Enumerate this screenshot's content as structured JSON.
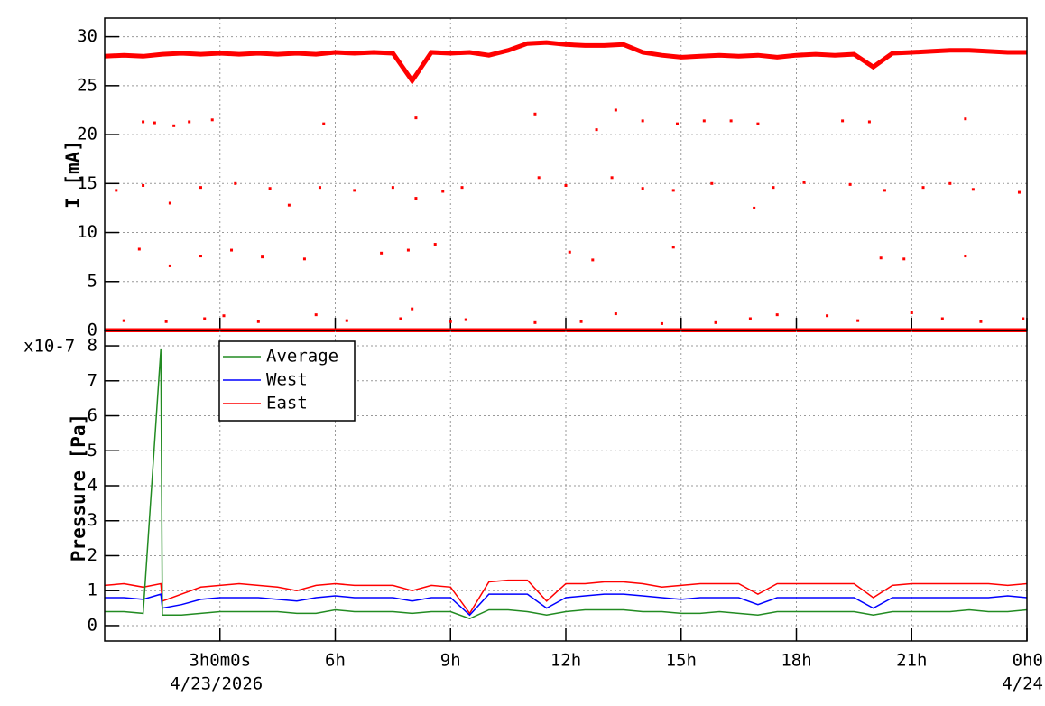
{
  "chart_data": [
    {
      "type": "scatter",
      "ylabel": "I [mA]",
      "color": "#ff0000",
      "grid": true,
      "xlim": [
        0,
        24
      ],
      "xticks": [
        3,
        6,
        9,
        12,
        15,
        18,
        21,
        24
      ],
      "ylim": [
        0,
        31.9
      ],
      "yticks": [
        0,
        5,
        10,
        15,
        20,
        25,
        30
      ],
      "series": [
        {
          "style": "line",
          "color": "#ff0000",
          "x": [
            0,
            0.5,
            1,
            1.5,
            2,
            2.5,
            3,
            3.5,
            4,
            4.5,
            5,
            5.5,
            6,
            6.5,
            7,
            7.5,
            8,
            8.5,
            9,
            9.5,
            10,
            10.5,
            11,
            11.5,
            12,
            12.5,
            13,
            13.5,
            14,
            14.5,
            15,
            15.5,
            16,
            16.5,
            17,
            17.5,
            18,
            18.5,
            19,
            19.5,
            20,
            20.5,
            21,
            21.5,
            22,
            22.5,
            23,
            23.5,
            24
          ],
          "values": [
            28.0,
            28.1,
            28.0,
            28.2,
            28.3,
            28.2,
            28.3,
            28.2,
            28.3,
            28.2,
            28.3,
            28.2,
            28.4,
            28.3,
            28.4,
            28.3,
            25.5,
            28.4,
            28.3,
            28.4,
            28.1,
            28.6,
            29.3,
            29.4,
            29.2,
            29.1,
            29.1,
            29.2,
            28.4,
            28.1,
            27.9,
            28.0,
            28.1,
            28.0,
            28.1,
            27.9,
            28.1,
            28.2,
            28.1,
            28.2,
            26.9,
            28.3,
            28.4,
            28.5,
            28.6,
            28.6,
            28.5,
            28.4,
            28.4
          ]
        },
        {
          "style": "line",
          "color": "#ff0000",
          "x": [
            0,
            24
          ],
          "values": [
            0,
            0
          ]
        },
        {
          "style": "marker",
          "color": "#ff0000",
          "x": [
            1.0,
            1.3,
            1.8,
            2.2,
            2.8,
            5.7,
            8.1,
            11.2,
            12.8,
            13.3,
            14.0,
            14.9,
            15.6,
            16.3,
            17.0,
            19.2,
            19.9,
            22.4,
            0.3,
            1.0,
            1.7,
            2.5,
            3.4,
            4.3,
            4.8,
            5.6,
            6.5,
            7.5,
            8.1,
            8.8,
            9.3,
            11.3,
            12.0,
            13.2,
            14.0,
            14.8,
            15.8,
            16.9,
            17.4,
            18.2,
            19.4,
            20.3,
            21.3,
            22.0,
            22.6,
            23.8,
            0.9,
            1.7,
            2.5,
            3.3,
            4.1,
            5.2,
            7.2,
            7.9,
            8.6,
            12.1,
            12.7,
            14.8,
            20.2,
            20.8,
            22.4,
            0.5,
            1.6,
            2.6,
            3.1,
            4.0,
            5.5,
            6.3,
            7.7,
            8.0,
            9.0,
            9.4,
            11.2,
            12.4,
            13.3,
            14.5,
            15.9,
            16.8,
            17.5,
            18.8,
            19.6,
            21.0,
            21.8,
            22.8,
            23.9
          ],
          "values": [
            21.3,
            21.2,
            20.9,
            21.3,
            21.5,
            21.1,
            21.7,
            22.1,
            20.5,
            22.5,
            21.4,
            21.1,
            21.4,
            21.4,
            21.1,
            21.4,
            21.3,
            21.6,
            14.3,
            14.8,
            13.0,
            14.6,
            15.0,
            14.5,
            12.8,
            14.6,
            14.3,
            14.6,
            13.5,
            14.2,
            14.6,
            15.6,
            14.8,
            15.6,
            14.5,
            14.3,
            15.0,
            12.5,
            14.6,
            15.1,
            14.9,
            14.3,
            14.6,
            15.0,
            14.4,
            14.1,
            8.3,
            6.6,
            7.6,
            8.2,
            7.5,
            7.3,
            7.9,
            8.2,
            8.8,
            8.0,
            7.2,
            8.5,
            7.4,
            7.3,
            7.6,
            1.0,
            0.9,
            1.2,
            1.5,
            0.9,
            1.6,
            1.0,
            1.2,
            2.2,
            0.9,
            1.1,
            0.8,
            0.9,
            1.7,
            0.7,
            0.8,
            1.2,
            1.6,
            1.5,
            1.0,
            1.8,
            1.2,
            0.9,
            1.2
          ]
        }
      ]
    },
    {
      "type": "line",
      "ylabel": "Pressure [Pa]",
      "y_multiplier": "x10-7",
      "grid": true,
      "legend": "top-left",
      "xlim": [
        0,
        24
      ],
      "xticks": [
        {
          "value": 3,
          "label": "3h0m0s"
        },
        {
          "value": 6,
          "label": "6h"
        },
        {
          "value": 9,
          "label": "9h"
        },
        {
          "value": 12,
          "label": "12h"
        },
        {
          "value": 15,
          "label": "15h"
        },
        {
          "value": 18,
          "label": "18h"
        },
        {
          "value": 21,
          "label": "21h"
        },
        {
          "value": 24,
          "label": "0h0"
        }
      ],
      "xtick_dates": [
        {
          "value": 3,
          "label": "4/23/2026"
        },
        {
          "value": 24,
          "label": "4/24"
        }
      ],
      "ylim": [
        -0.44,
        8.44
      ],
      "yticks": [
        0,
        1,
        2,
        3,
        4,
        5,
        6,
        7,
        8
      ],
      "x": [
        0,
        0.5,
        1,
        1.46,
        1.5,
        2,
        2.5,
        3,
        3.5,
        4,
        4.5,
        5,
        5.5,
        6,
        6.5,
        7,
        7.5,
        8,
        8.5,
        9,
        9.5,
        10,
        10.5,
        11,
        11.5,
        12,
        12.5,
        13,
        13.5,
        14,
        14.5,
        15,
        15.5,
        16,
        16.5,
        17,
        17.5,
        18,
        18.5,
        19,
        19.5,
        20,
        20.5,
        21,
        21.5,
        22,
        22.5,
        23,
        23.5,
        24
      ],
      "series": [
        {
          "name": "Average",
          "color": "#228b22",
          "values": [
            0.4,
            0.4,
            0.35,
            7.9,
            0.3,
            0.3,
            0.35,
            0.4,
            0.4,
            0.4,
            0.4,
            0.35,
            0.35,
            0.45,
            0.4,
            0.4,
            0.4,
            0.35,
            0.4,
            0.4,
            0.2,
            0.45,
            0.45,
            0.4,
            0.3,
            0.4,
            0.45,
            0.45,
            0.45,
            0.4,
            0.4,
            0.35,
            0.35,
            0.4,
            0.35,
            0.3,
            0.4,
            0.4,
            0.4,
            0.4,
            0.4,
            0.3,
            0.4,
            0.4,
            0.4,
            0.4,
            0.45,
            0.4,
            0.4,
            0.45
          ]
        },
        {
          "name": "West",
          "color": "#0000ff",
          "values": [
            0.8,
            0.8,
            0.75,
            0.9,
            0.5,
            0.6,
            0.75,
            0.8,
            0.8,
            0.8,
            0.75,
            0.7,
            0.8,
            0.85,
            0.8,
            0.8,
            0.8,
            0.7,
            0.8,
            0.8,
            0.3,
            0.9,
            0.9,
            0.9,
            0.5,
            0.8,
            0.85,
            0.9,
            0.9,
            0.85,
            0.8,
            0.75,
            0.8,
            0.8,
            0.8,
            0.6,
            0.8,
            0.8,
            0.8,
            0.8,
            0.8,
            0.5,
            0.8,
            0.8,
            0.8,
            0.8,
            0.8,
            0.8,
            0.85,
            0.8
          ]
        },
        {
          "name": "East",
          "color": "#ff0000",
          "values": [
            1.15,
            1.2,
            1.1,
            1.2,
            0.7,
            0.9,
            1.1,
            1.15,
            1.2,
            1.15,
            1.1,
            1.0,
            1.15,
            1.2,
            1.15,
            1.15,
            1.15,
            1.0,
            1.15,
            1.1,
            0.35,
            1.25,
            1.3,
            1.3,
            0.7,
            1.2,
            1.2,
            1.25,
            1.25,
            1.2,
            1.1,
            1.15,
            1.2,
            1.2,
            1.2,
            0.9,
            1.2,
            1.2,
            1.2,
            1.2,
            1.2,
            0.8,
            1.15,
            1.2,
            1.2,
            1.2,
            1.2,
            1.2,
            1.15,
            1.2
          ]
        }
      ]
    }
  ]
}
